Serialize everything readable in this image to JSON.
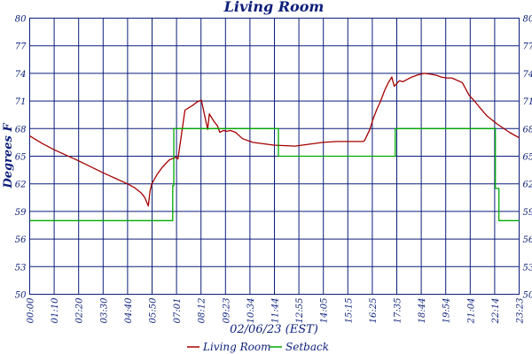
{
  "chart_data": {
    "type": "line",
    "title": "Living Room",
    "xlabel": "02/06/23 (EST)",
    "ylabel": "Degrees F",
    "ylim": [
      50,
      80
    ],
    "grid": true,
    "legend_position": "bottom",
    "y_ticks": [
      "50",
      "53",
      "56",
      "59",
      "62",
      "65",
      "68",
      "71",
      "74",
      "77",
      "80"
    ],
    "x_ticks": [
      "00:00",
      "01:10",
      "02:20",
      "03:30",
      "04:40",
      "05:50",
      "07:01",
      "08:12",
      "09:23",
      "10:34",
      "11:44",
      "12:55",
      "14:05",
      "15:15",
      "16:25",
      "17:35",
      "18:44",
      "19:54",
      "21:04",
      "22:14",
      "23:23"
    ],
    "x_unit": "minutes",
    "x_range": [
      0,
      1403
    ],
    "colors": {
      "grid": "#0b1e7a",
      "living_room": "#a50000",
      "setback": "#00aa00"
    },
    "series": [
      {
        "name": "Living Room",
        "color": "#a50000",
        "x": [
          0,
          35,
          70,
          140,
          210,
          280,
          300,
          320,
          330,
          340,
          345,
          350,
          365,
          380,
          400,
          420,
          425,
          445,
          470,
          480,
          492,
          500,
          510,
          515,
          528,
          538,
          545,
          555,
          565,
          575,
          590,
          610,
          640,
          700,
          760,
          800,
          840,
          880,
          955,
          960,
          975,
          985,
          995,
          1005,
          1018,
          1028,
          1038,
          1045,
          1060,
          1070,
          1080,
          1095,
          1110,
          1130,
          1150,
          1165,
          1180,
          1195,
          1210,
          1240,
          1260,
          1275,
          1290,
          1310,
          1340,
          1375,
          1403
        ],
        "y": [
          67.2,
          66.4,
          65.7,
          64.5,
          63.2,
          62.0,
          61.6,
          61.0,
          60.5,
          59.6,
          61.2,
          62.0,
          63.0,
          63.8,
          64.6,
          64.9,
          64.7,
          70.0,
          70.6,
          70.9,
          71.1,
          69.7,
          67.9,
          69.6,
          68.8,
          68.3,
          67.6,
          67.8,
          67.7,
          67.8,
          67.6,
          66.9,
          66.5,
          66.2,
          66.1,
          66.3,
          66.5,
          66.6,
          66.6,
          66.7,
          67.9,
          69.1,
          70.1,
          70.9,
          72.2,
          73.0,
          73.6,
          72.6,
          73.2,
          73.1,
          73.3,
          73.6,
          73.8,
          74.0,
          73.9,
          73.8,
          73.6,
          73.5,
          73.5,
          73.0,
          71.6,
          71.0,
          70.3,
          69.4,
          68.5,
          67.6,
          67.0
        ]
      },
      {
        "name": "Setback",
        "color": "#00aa00",
        "x": [
          0,
          410,
          410,
          413,
          413,
          713,
          713,
          1048,
          1048,
          1335,
          1335,
          1345,
          1345,
          1403
        ],
        "y": [
          58.0,
          58.0,
          61.8,
          61.8,
          68.0,
          68.0,
          65.0,
          65.0,
          68.0,
          68.0,
          61.5,
          61.5,
          58.0,
          58.0
        ]
      }
    ]
  }
}
